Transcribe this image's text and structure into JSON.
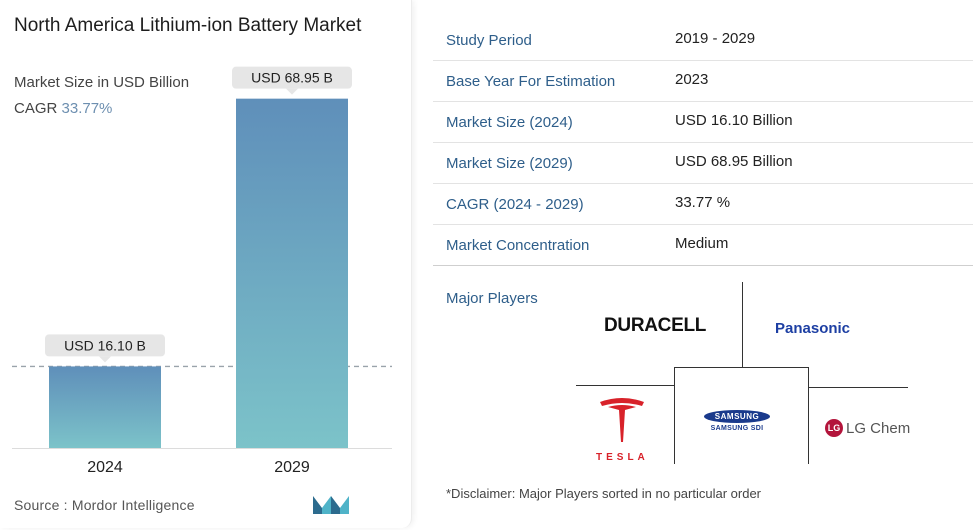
{
  "chart_data": {
    "type": "bar",
    "title": "North America Lithium-ion Battery Market",
    "subtitle": "Market Size in USD Billion",
    "cagr_label": "CAGR",
    "cagr_value": "33.77%",
    "categories": [
      "2024",
      "2029"
    ],
    "values": [
      16.1,
      68.95
    ],
    "data_labels": [
      "USD 16.10 B",
      "USD 68.95 B"
    ],
    "xlabel": "",
    "ylabel": "",
    "ylim": [
      0,
      75
    ],
    "grid": false,
    "reference_line": "dashed at 2024 value"
  },
  "source": "Source :  Mordor Intelligence",
  "brand_logo": "mordor-intelligence-logo",
  "colors": {
    "bar_top": "#5f8fba",
    "bar_bottom": "#7cc3c9",
    "label_bg": "#e6e6e6",
    "table_label": "#2e5e8a",
    "cagr_accent": "#6d8fb0"
  },
  "table": [
    {
      "label": "Study Period",
      "value": "2019 - 2029"
    },
    {
      "label": "Base Year For Estimation",
      "value": "2023"
    },
    {
      "label": "Market Size (2024)",
      "value": "USD 16.10 Billion"
    },
    {
      "label": "Market Size (2029)",
      "value": "USD 68.95 Billion"
    },
    {
      "label": "CAGR (2024 - 2029)",
      "value": "33.77 %"
    },
    {
      "label": "Market Concentration",
      "value": "Medium"
    }
  ],
  "players": {
    "title": "Major Players",
    "names": [
      "DURACELL",
      "Panasonic",
      "TESLA",
      "SAMSUNG",
      "SAMSUNG SDI",
      "LG",
      "LG Chem"
    ]
  },
  "disclaimer": "*Disclaimer: Major Players sorted in no particular order"
}
